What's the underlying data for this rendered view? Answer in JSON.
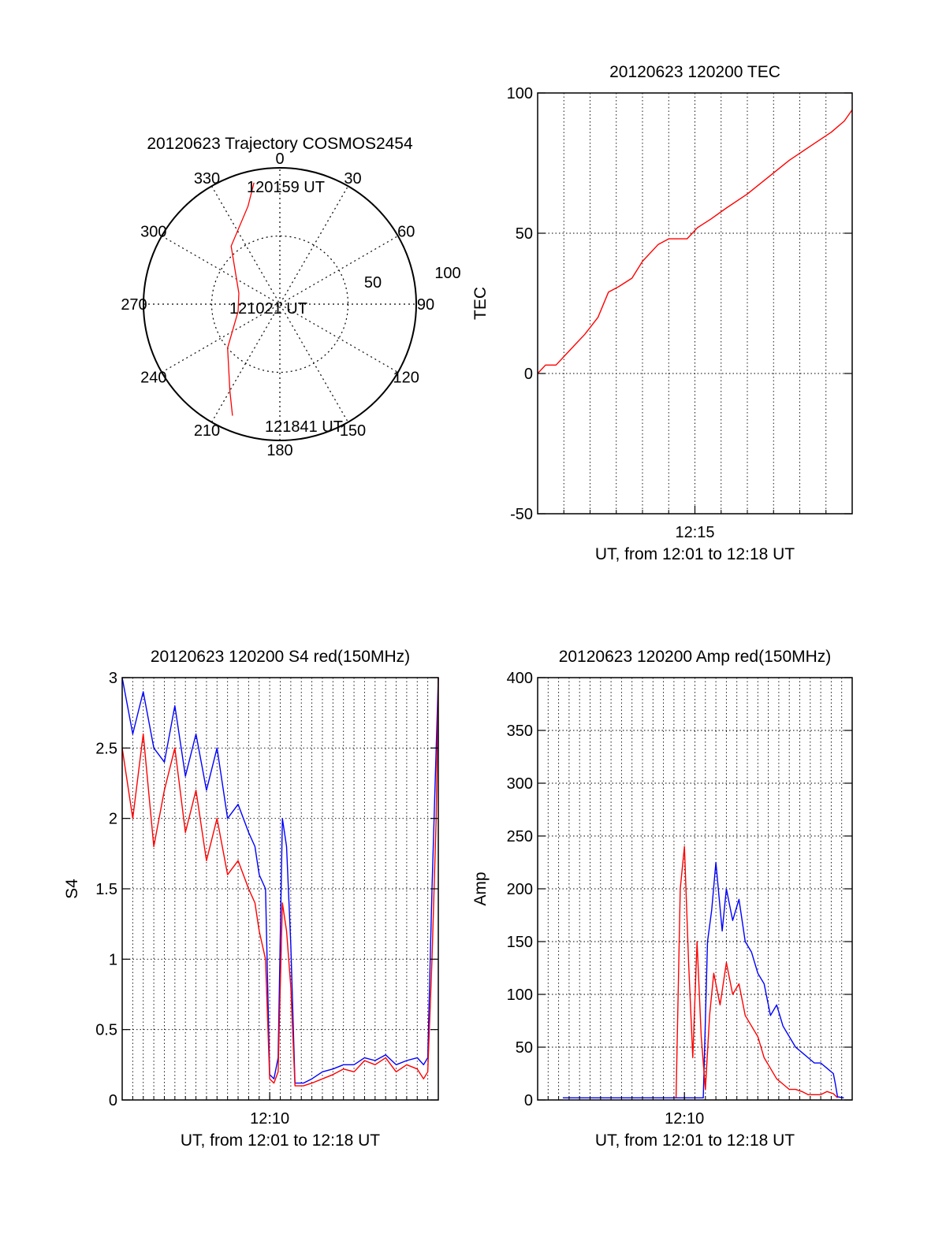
{
  "colors": {
    "red": "#ff0000",
    "blue": "#0000ff",
    "axis": "#000000"
  },
  "chart_data": [
    {
      "id": "trajectory",
      "type": "polar",
      "title": "20120623 Trajectory COSMOS2454",
      "azimuth_labels": [
        {
          "az": 0,
          "label": "0"
        },
        {
          "az": 30,
          "label": "30"
        },
        {
          "az": 60,
          "label": "60"
        },
        {
          "az": 90,
          "label": "90"
        },
        {
          "az": 120,
          "label": "120"
        },
        {
          "az": 150,
          "label": "150"
        },
        {
          "az": 180,
          "label": "180"
        },
        {
          "az": 210,
          "label": "210"
        },
        {
          "az": 240,
          "label": "240"
        },
        {
          "az": 270,
          "label": "270"
        },
        {
          "az": 300,
          "label": "300"
        },
        {
          "az": 330,
          "label": "330"
        }
      ],
      "radius_labels": [
        "50",
        "100"
      ],
      "track": {
        "points": [
          {
            "az": 348,
            "el": 8
          },
          {
            "az": 342,
            "el": 22
          },
          {
            "az": 320,
            "el": 40
          },
          {
            "az": 285,
            "el": 62
          },
          {
            "az": 260,
            "el": 62
          },
          {
            "az": 230,
            "el": 45
          },
          {
            "az": 210,
            "el": 24
          },
          {
            "az": 203,
            "el": 10
          }
        ],
        "labels": [
          "120159 UT",
          "121021 UT",
          "121841 UT"
        ]
      }
    },
    {
      "id": "tec",
      "type": "line",
      "title": "20120623 120200 TEC",
      "ylabel": "TEC",
      "xlabel": "UT, from 12:01 to 12:18 UT",
      "xlim": [
        12.0,
        18.0
      ],
      "ylim": [
        -50,
        100
      ],
      "yticks": [
        -50,
        0,
        50,
        100
      ],
      "xticks": [
        {
          "value": 15.0,
          "label": "12:15"
        }
      ],
      "series": [
        {
          "color": "red",
          "x": [
            12.0,
            12.15,
            12.35,
            12.6,
            12.9,
            13.15,
            13.35,
            13.55,
            13.8,
            14.0,
            14.3,
            14.5,
            14.85,
            15.05,
            15.3,
            15.6,
            16.0,
            16.4,
            16.8,
            17.2,
            17.6,
            17.85,
            18.0
          ],
          "y": [
            0,
            3,
            3,
            8,
            14,
            20,
            29,
            31,
            34,
            40,
            46,
            48,
            48,
            52,
            55,
            59,
            64,
            70,
            76,
            81,
            86,
            90,
            94
          ]
        }
      ]
    },
    {
      "id": "s4",
      "type": "line",
      "title": "20120623 120200 S4 red(150MHz)",
      "ylabel": "S4",
      "xlabel": "UT, from 12:01 to 12:18 UT",
      "xlim": [
        3.0,
        18.0
      ],
      "ylim": [
        0,
        3
      ],
      "yticks": [
        0,
        0.5,
        1,
        1.5,
        2,
        2.5,
        3
      ],
      "ytick_labels": [
        "0",
        "0.5",
        "1",
        "1.5",
        "2",
        "2.5",
        "3"
      ],
      "xticks": [
        {
          "value": 10.0,
          "label": "12:10"
        }
      ],
      "series": [
        {
          "color": "blue",
          "x": [
            3.0,
            3.5,
            4.0,
            4.5,
            5.0,
            5.5,
            6.0,
            6.5,
            7.0,
            7.5,
            8.0,
            8.5,
            9.0,
            9.3,
            9.5,
            9.8,
            10.0,
            10.2,
            10.4,
            10.6,
            10.8,
            11.0,
            11.2,
            11.6,
            12.0,
            12.5,
            13.0,
            13.5,
            14.0,
            14.5,
            15.0,
            15.5,
            16.0,
            16.5,
            17.0,
            17.3,
            17.5,
            17.7,
            17.9,
            18.0
          ],
          "y": [
            3.0,
            2.6,
            2.9,
            2.5,
            2.4,
            2.8,
            2.3,
            2.6,
            2.2,
            2.5,
            2.0,
            2.1,
            1.9,
            1.8,
            1.6,
            1.5,
            0.18,
            0.15,
            0.3,
            2.0,
            1.8,
            1.1,
            0.12,
            0.12,
            0.15,
            0.2,
            0.22,
            0.25,
            0.25,
            0.3,
            0.28,
            0.32,
            0.25,
            0.28,
            0.3,
            0.25,
            0.3,
            1.5,
            2.5,
            3.0
          ]
        },
        {
          "color": "red",
          "x": [
            3.0,
            3.5,
            4.0,
            4.5,
            5.0,
            5.5,
            6.0,
            6.5,
            7.0,
            7.5,
            8.0,
            8.5,
            9.0,
            9.3,
            9.5,
            9.8,
            10.0,
            10.2,
            10.4,
            10.6,
            10.8,
            11.0,
            11.2,
            11.6,
            12.0,
            12.5,
            13.0,
            13.5,
            14.0,
            14.5,
            15.0,
            15.5,
            16.0,
            16.5,
            17.0,
            17.3,
            17.5,
            17.7,
            17.9,
            18.0
          ],
          "y": [
            2.5,
            2.0,
            2.6,
            1.8,
            2.2,
            2.5,
            1.9,
            2.2,
            1.7,
            2.0,
            1.6,
            1.7,
            1.5,
            1.4,
            1.2,
            1.0,
            0.15,
            0.12,
            0.2,
            1.4,
            1.2,
            0.8,
            0.1,
            0.1,
            0.12,
            0.15,
            0.18,
            0.22,
            0.2,
            0.28,
            0.25,
            0.3,
            0.2,
            0.25,
            0.22,
            0.15,
            0.2,
            1.0,
            2.0,
            3.0
          ]
        }
      ]
    },
    {
      "id": "amp",
      "type": "line",
      "title": "20120623 120200 Amp red(150MHz)",
      "ylabel": "Amp",
      "xlabel": "UT, from 12:01 to 12:18 UT",
      "xlim": [
        3.0,
        18.0
      ],
      "ylim": [
        0,
        400
      ],
      "yticks": [
        0,
        50,
        100,
        150,
        200,
        250,
        300,
        350,
        400
      ],
      "xticks": [
        {
          "value": 10.0,
          "label": "12:10"
        }
      ],
      "series": [
        {
          "color": "blue",
          "x": [
            4.2,
            6.0,
            8.0,
            9.0,
            9.6,
            9.8,
            10.0,
            10.3,
            10.6,
            10.9,
            11.1,
            11.3,
            11.5,
            11.8,
            12.0,
            12.3,
            12.6,
            12.9,
            13.2,
            13.5,
            13.8,
            14.1,
            14.4,
            14.7,
            15.0,
            15.3,
            15.6,
            15.9,
            16.2,
            16.5,
            16.8,
            17.1,
            17.2,
            17.3,
            17.6
          ],
          "y": [
            2,
            2,
            2,
            2,
            2,
            2,
            2,
            2,
            2,
            2,
            150,
            180,
            225,
            160,
            200,
            170,
            190,
            150,
            140,
            120,
            110,
            80,
            90,
            70,
            60,
            50,
            45,
            40,
            35,
            35,
            30,
            25,
            15,
            3,
            2
          ]
        },
        {
          "color": "red",
          "x": [
            9.6,
            9.8,
            10.0,
            10.2,
            10.4,
            10.6,
            10.8,
            11.0,
            11.2,
            11.4,
            11.7,
            12.0,
            12.3,
            12.6,
            12.9,
            13.2,
            13.5,
            13.8,
            14.1,
            14.4,
            14.7,
            15.0,
            15.3,
            15.6,
            15.9,
            16.2,
            16.5,
            16.8,
            17.1,
            17.3
          ],
          "y": [
            2,
            200,
            240,
            130,
            40,
            150,
            60,
            10,
            80,
            120,
            90,
            130,
            100,
            110,
            80,
            70,
            60,
            40,
            30,
            20,
            15,
            10,
            10,
            8,
            5,
            5,
            5,
            8,
            6,
            2
          ]
        }
      ]
    }
  ]
}
